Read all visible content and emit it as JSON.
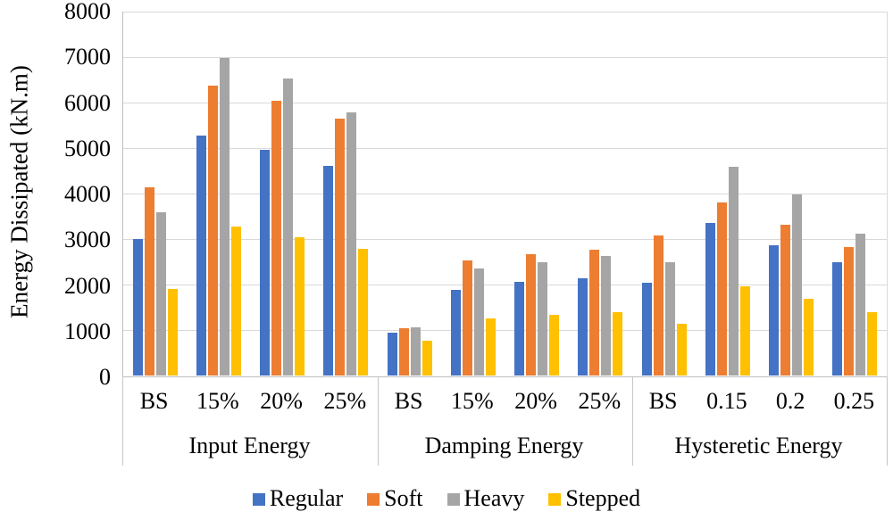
{
  "chart_data": {
    "type": "bar",
    "title": "",
    "ylabel": "Energy Dissipated (kN.m)",
    "xlabel": "",
    "ylim": [
      0,
      8000
    ],
    "yticks": [
      0,
      1000,
      2000,
      3000,
      4000,
      5000,
      6000,
      7000,
      8000
    ],
    "grid": true,
    "legend_position": "bottom",
    "grid_color": "#D9D9D9",
    "axis_color": "#BFBFBF",
    "groups": [
      {
        "label": "Input Energy",
        "categories": [
          "BS",
          "15%",
          "20%",
          "25%"
        ]
      },
      {
        "label": "Damping Energy",
        "categories": [
          "BS",
          "15%",
          "20%",
          "25%"
        ]
      },
      {
        "label": "Hysteretic Energy",
        "categories": [
          "BS",
          "0.15",
          "0.2",
          "0.25"
        ]
      }
    ],
    "series": [
      {
        "name": "Regular",
        "color": "#4472C4",
        "values": [
          [
            3000,
            5270,
            4960,
            4610
          ],
          [
            940,
            1890,
            2050,
            2130
          ],
          [
            2030,
            3360,
            2870,
            2500
          ]
        ]
      },
      {
        "name": "Soft",
        "color": "#ED7D31",
        "values": [
          [
            4130,
            6370,
            6030,
            5640
          ],
          [
            1030,
            2520,
            2670,
            2770
          ],
          [
            3080,
            3810,
            3320,
            2830
          ]
        ]
      },
      {
        "name": "Heavy",
        "color": "#A5A5A5",
        "values": [
          [
            3590,
            6980,
            6520,
            5790
          ],
          [
            1060,
            2360,
            2500,
            2620
          ],
          [
            2500,
            4580,
            3980,
            3120
          ]
        ]
      },
      {
        "name": "Stepped",
        "color": "#FFC000",
        "values": [
          [
            1910,
            3280,
            3030,
            2790
          ],
          [
            760,
            1250,
            1330,
            1390
          ],
          [
            1130,
            1970,
            1680,
            1390
          ]
        ]
      }
    ]
  }
}
